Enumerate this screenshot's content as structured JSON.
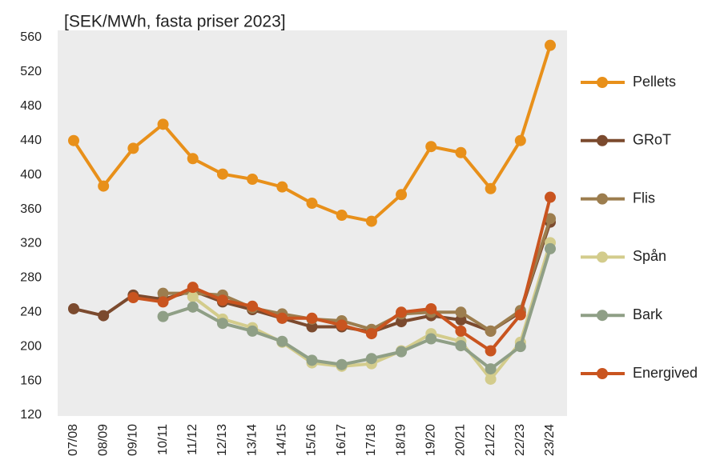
{
  "chart_data": {
    "type": "line",
    "title": "[SEK/MWh, fasta priser 2023]",
    "categories": [
      "07/08",
      "08/09",
      "09/10",
      "10/11",
      "11/12",
      "12/13",
      "13/14",
      "14/15",
      "15/16",
      "16/17",
      "17/18",
      "18/19",
      "19/20",
      "20/21",
      "21/22",
      "22/23",
      "23/24"
    ],
    "ylim": [
      120,
      560
    ],
    "yticks": [
      120,
      160,
      200,
      240,
      280,
      320,
      360,
      400,
      440,
      480,
      520,
      560
    ],
    "grid": false,
    "series": [
      {
        "name": "Pellets",
        "color": "#e8901a",
        "values": [
          440,
          387,
          431,
          459,
          419,
          401,
          395,
          386,
          367,
          353,
          346,
          377,
          433,
          426,
          384,
          440,
          551
        ]
      },
      {
        "name": "GRoT",
        "color": "#7b4a2e",
        "values": [
          244,
          236,
          260,
          255,
          265,
          252,
          243,
          233,
          223,
          223,
          217,
          229,
          236,
          231,
          218,
          240,
          345
        ]
      },
      {
        "name": "Flis",
        "color": "#9c7d4e",
        "values": [
          null,
          null,
          null,
          262,
          262,
          260,
          245,
          238,
          232,
          230,
          220,
          238,
          240,
          240,
          218,
          242,
          349
        ]
      },
      {
        "name": "Spån",
        "color": "#d3cc8c",
        "values": [
          null,
          null,
          null,
          null,
          258,
          232,
          222,
          205,
          181,
          177,
          180,
          195,
          215,
          206,
          162,
          205,
          321
        ]
      },
      {
        "name": "Bark",
        "color": "#8f9f86",
        "values": [
          null,
          null,
          null,
          235,
          246,
          227,
          218,
          206,
          184,
          179,
          186,
          194,
          209,
          201,
          174,
          200,
          314
        ]
      },
      {
        "name": "Energived",
        "color": "#c9541f",
        "values": [
          null,
          null,
          257,
          252,
          269,
          254,
          247,
          233,
          233,
          225,
          215,
          240,
          244,
          218,
          195,
          237,
          374
        ]
      }
    ]
  }
}
